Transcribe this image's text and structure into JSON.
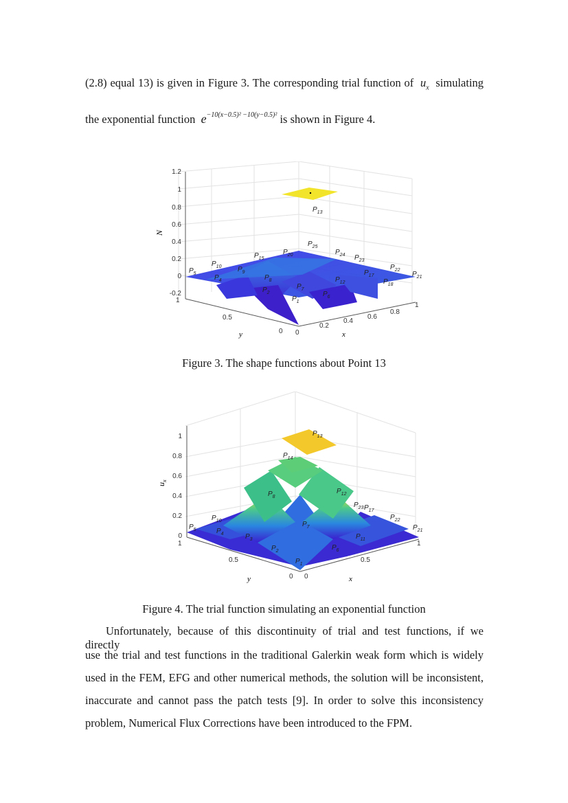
{
  "text": {
    "line1": {
      "before": "(2.8) equal 13) is given in Figure 3. The corresponding trial function of",
      "var": "u",
      "sub": "x",
      "after": "simulating"
    },
    "line2": {
      "before": "the exponential function",
      "e": "e",
      "exponent": "−10(x−0.5)² −10(y−0.5)²",
      "after": "is shown in Figure 4."
    },
    "fig3_caption": "Figure 3. The shape functions about Point 13",
    "fig4_caption": "Figure 4. The trial function simulating an exponential function",
    "para": [
      "Unfortunately, because of this discontinuity of trial and test functions, if we directly",
      "use the trial and test functions in the traditional Galerkin weak form which is widely",
      "used in the FEM, EFG and other numerical methods, the solution will be inconsistent,",
      "inaccurate and cannot pass the patch tests [9]. In order to solve this inconsistency",
      "problem, Numerical Flux Corrections have been introduced to the FPM."
    ]
  },
  "chart_data": [
    {
      "type": "surface3d",
      "zlabel": "N",
      "xlabel": "x",
      "ylabel": "y",
      "z_ticks": [
        "-0.2",
        "0",
        "0.2",
        "0.4",
        "0.6",
        "0.8",
        "1",
        "1.2"
      ],
      "x_ticks": [
        "0",
        "0.2",
        "0.4",
        "0.6",
        "0.8",
        "1"
      ],
      "y_ticks": [
        "0",
        "0.5",
        "1"
      ],
      "zlim": [
        -0.2,
        1.2
      ],
      "colormap": [
        "#3b1fd1",
        "#1e9ed9",
        "#5fd08a",
        "#f5e62a"
      ],
      "highlight": {
        "point": "P13",
        "value": 1
      },
      "points": [
        {
          "name": "P",
          "sub": "1"
        },
        {
          "name": "P",
          "sub": "2"
        },
        {
          "name": "P",
          "sub": "4"
        },
        {
          "name": "P",
          "sub": "5"
        },
        {
          "name": "P",
          "sub": "6"
        },
        {
          "name": "P",
          "sub": "7"
        },
        {
          "name": "P",
          "sub": "8"
        },
        {
          "name": "P",
          "sub": "9"
        },
        {
          "name": "P",
          "sub": "10"
        },
        {
          "name": "P",
          "sub": "12"
        },
        {
          "name": "P",
          "sub": "13"
        },
        {
          "name": "P",
          "sub": "15"
        },
        {
          "name": "P",
          "sub": "17"
        },
        {
          "name": "P",
          "sub": "18"
        },
        {
          "name": "P",
          "sub": "20"
        },
        {
          "name": "P",
          "sub": "21"
        },
        {
          "name": "P",
          "sub": "22"
        },
        {
          "name": "P",
          "sub": "23"
        },
        {
          "name": "P",
          "sub": "24"
        },
        {
          "name": "P",
          "sub": "25"
        }
      ]
    },
    {
      "type": "surface3d",
      "zlabel": "u_x",
      "xlabel": "x",
      "ylabel": "y",
      "z_ticks": [
        "0",
        "0.2",
        "0.4",
        "0.6",
        "0.8",
        "1"
      ],
      "x_ticks": [
        "0",
        "0.5",
        "1"
      ],
      "y_ticks": [
        "0",
        "0.5",
        "1"
      ],
      "zlim": [
        0,
        1
      ],
      "colormap": [
        "#3b1fd1",
        "#1e9ed9",
        "#5fd08a",
        "#f5e62a"
      ],
      "function": "exp(-10(x-0.5)^2 - 10(y-0.5)^2)",
      "points": [
        {
          "name": "P",
          "sub": "1"
        },
        {
          "name": "P",
          "sub": "2"
        },
        {
          "name": "P",
          "sub": "3"
        },
        {
          "name": "P",
          "sub": "4"
        },
        {
          "name": "P",
          "sub": "5"
        },
        {
          "name": "P",
          "sub": "6"
        },
        {
          "name": "P",
          "sub": "7"
        },
        {
          "name": "P",
          "sub": "8"
        },
        {
          "name": "P",
          "sub": "10"
        },
        {
          "name": "P",
          "sub": "11"
        },
        {
          "name": "P",
          "sub": "12"
        },
        {
          "name": "P",
          "sub": "13"
        },
        {
          "name": "P",
          "sub": "14"
        },
        {
          "name": "P",
          "sub": "17"
        },
        {
          "name": "P",
          "sub": "21"
        },
        {
          "name": "P",
          "sub": "22"
        },
        {
          "name": "P",
          "sub": "23"
        }
      ]
    }
  ]
}
